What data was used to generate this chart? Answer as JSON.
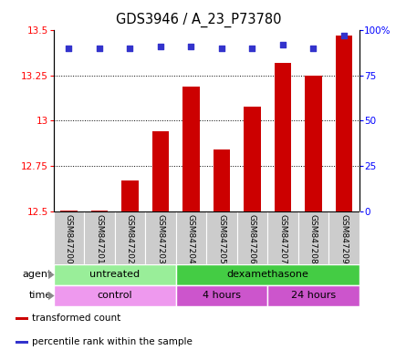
{
  "title": "GDS3946 / A_23_P73780",
  "samples": [
    "GSM847200",
    "GSM847201",
    "GSM847202",
    "GSM847203",
    "GSM847204",
    "GSM847205",
    "GSM847206",
    "GSM847207",
    "GSM847208",
    "GSM847209"
  ],
  "bar_values": [
    12.505,
    12.505,
    12.67,
    12.94,
    13.19,
    12.84,
    13.08,
    13.32,
    13.25,
    13.47
  ],
  "bar_color": "#cc0000",
  "dot_color": "#3333cc",
  "ylim_left": [
    12.5,
    13.5
  ],
  "ylim_right": [
    0,
    100
  ],
  "yticks_left": [
    12.5,
    12.75,
    13.0,
    13.25,
    13.5
  ],
  "yticks_right": [
    0,
    25,
    50,
    75,
    100
  ],
  "ytick_labels_left": [
    "12.5",
    "12.75",
    "13",
    "13.25",
    "13.5"
  ],
  "ytick_labels_right": [
    "0",
    "25",
    "50",
    "75",
    "100%"
  ],
  "agent_groups": [
    {
      "label": "untreated",
      "color": "#99ee99",
      "start": 0,
      "end": 4
    },
    {
      "label": "dexamethasone",
      "color": "#44cc44",
      "start": 4,
      "end": 10
    }
  ],
  "time_groups": [
    {
      "label": "control",
      "color": "#ee99ee",
      "start": 0,
      "end": 4
    },
    {
      "label": "4 hours",
      "color": "#cc55cc",
      "start": 4,
      "end": 7
    },
    {
      "label": "24 hours",
      "color": "#cc55cc",
      "start": 7,
      "end": 10
    }
  ],
  "legend_items": [
    {
      "color": "#cc0000",
      "label": "transformed count"
    },
    {
      "color": "#3333cc",
      "label": "percentile rank within the sample"
    }
  ],
  "agent_label": "agent",
  "time_label": "time",
  "bar_bottom": 12.5,
  "percentile_yvals": [
    90,
    90,
    90,
    91,
    91,
    90,
    90,
    92,
    90,
    97
  ],
  "sample_bg_color": "#cccccc",
  "plot_bg_color": "#ffffff",
  "fig_bg_color": "#ffffff"
}
